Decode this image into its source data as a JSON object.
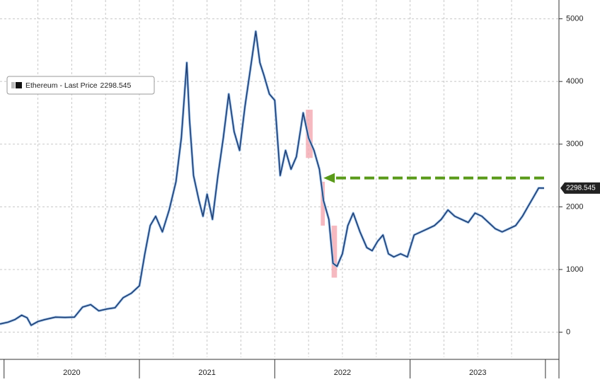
{
  "chart_data": {
    "type": "line",
    "series": [
      {
        "name": "Ethereum - Last Price",
        "color": "#1f3f74",
        "x": [
          2019.97,
          2020.03,
          2020.08,
          2020.13,
          2020.17,
          2020.2,
          2020.25,
          2020.3,
          2020.38,
          2020.45,
          2020.52,
          2020.58,
          2020.64,
          2020.7,
          2020.76,
          2020.82,
          2020.88,
          2020.94,
          2021.0,
          2021.04,
          2021.08,
          2021.12,
          2021.17,
          2021.22,
          2021.27,
          2021.31,
          2021.35,
          2021.37,
          2021.4,
          2021.44,
          2021.47,
          2021.5,
          2021.54,
          2021.58,
          2021.62,
          2021.66,
          2021.7,
          2021.74,
          2021.78,
          2021.82,
          2021.86,
          2021.89,
          2021.92,
          2021.96,
          2022.0,
          2022.04,
          2022.08,
          2022.12,
          2022.16,
          2022.21,
          2022.25,
          2022.29,
          2022.33,
          2022.36,
          2022.4,
          2022.43,
          2022.46,
          2022.5,
          2022.54,
          2022.58,
          2022.63,
          2022.68,
          2022.72,
          2022.76,
          2022.8,
          2022.84,
          2022.88,
          2022.93,
          2022.98,
          2023.03,
          2023.08,
          2023.13,
          2023.18,
          2023.23,
          2023.28,
          2023.33,
          2023.38,
          2023.43,
          2023.48,
          2023.53,
          2023.58,
          2023.63,
          2023.68,
          2023.73,
          2023.78,
          2023.83,
          2023.87,
          2023.91,
          2023.95,
          2023.99
        ],
        "values": [
          130,
          160,
          200,
          270,
          230,
          110,
          170,
          200,
          240,
          235,
          240,
          400,
          440,
          340,
          370,
          390,
          550,
          620,
          740,
          1250,
          1700,
          1850,
          1600,
          1950,
          2400,
          3100,
          4300,
          3400,
          2500,
          2100,
          1850,
          2200,
          1800,
          2500,
          3100,
          3800,
          3200,
          2900,
          3600,
          4200,
          4800,
          4300,
          4100,
          3800,
          3700,
          2500,
          2900,
          2600,
          2800,
          3500,
          3100,
          2900,
          2600,
          2100,
          1800,
          1100,
          1050,
          1250,
          1700,
          1900,
          1600,
          1350,
          1300,
          1450,
          1550,
          1250,
          1200,
          1250,
          1200,
          1550,
          1600,
          1650,
          1700,
          1800,
          1950,
          1850,
          1800,
          1750,
          1900,
          1850,
          1750,
          1650,
          1600,
          1650,
          1700,
          1850,
          2000,
          2150,
          2300,
          2298.545
        ]
      }
    ],
    "highlights": [
      {
        "x": [
          2022.23,
          2022.28
        ],
        "y": [
          2780,
          3550
        ]
      },
      {
        "x": [
          2022.34,
          2022.37
        ],
        "y": [
          1700,
          2400
        ]
      },
      {
        "x": [
          2022.42,
          2022.46
        ],
        "y": [
          870,
          1700
        ]
      }
    ],
    "arrow": {
      "value": 2460,
      "x": [
        2023.99,
        2022.36
      ],
      "color": "#5a9a1a"
    },
    "xlim": [
      2019.97,
      2024.1
    ],
    "ylim": [
      -400,
      5300
    ],
    "yticks": [
      0,
      1000,
      2000,
      3000,
      4000,
      5000
    ],
    "year_boundaries": [
      2020,
      2021,
      2022,
      2023,
      2024
    ],
    "xticks": [
      {
        "value": 2020.5,
        "label": "2020"
      },
      {
        "value": 2021.5,
        "label": "2021"
      },
      {
        "value": 2022.5,
        "label": "2022"
      },
      {
        "value": 2023.5,
        "label": "2023"
      }
    ],
    "xgrid": [
      2020.25,
      2020.5,
      2020.75,
      2021,
      2021.25,
      2021.5,
      2021.75,
      2022,
      2022.25,
      2022.5,
      2022.75,
      2023,
      2023.25,
      2023.5,
      2023.75
    ],
    "grid": true
  }
}
